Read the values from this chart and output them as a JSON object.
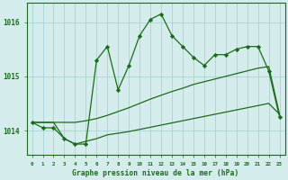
{
  "hours": [
    0,
    1,
    2,
    3,
    4,
    5,
    6,
    7,
    8,
    9,
    10,
    11,
    12,
    13,
    14,
    15,
    16,
    17,
    18,
    19,
    20,
    21,
    22,
    23
  ],
  "pressure_main": [
    1014.15,
    1014.05,
    1014.05,
    1013.85,
    1013.75,
    1013.75,
    1015.3,
    1015.55,
    1014.75,
    1015.2,
    1015.75,
    1016.05,
    1016.15,
    1015.75,
    1015.55,
    1015.35,
    1015.2,
    1015.4,
    1015.4,
    1015.5,
    1015.55,
    1015.55,
    1015.1,
    1014.25
  ],
  "pressure_trend1": [
    1014.15,
    1014.15,
    1014.15,
    1014.15,
    1014.15,
    1014.18,
    1014.22,
    1014.28,
    1014.35,
    1014.42,
    1014.5,
    1014.58,
    1014.65,
    1014.72,
    1014.78,
    1014.85,
    1014.9,
    1014.95,
    1015.0,
    1015.05,
    1015.1,
    1015.15,
    1015.18,
    1014.3
  ],
  "pressure_trend2": [
    1014.15,
    1014.15,
    1014.15,
    1013.85,
    1013.75,
    1013.8,
    1013.85,
    1013.92,
    1013.95,
    1013.98,
    1014.02,
    1014.06,
    1014.1,
    1014.14,
    1014.18,
    1014.22,
    1014.26,
    1014.3,
    1014.34,
    1014.38,
    1014.42,
    1014.46,
    1014.5,
    1014.3
  ],
  "ylim": [
    1013.55,
    1016.35
  ],
  "yticks": [
    1014,
    1015,
    1016
  ],
  "xtick_labels": [
    "0",
    "1",
    "2",
    "3",
    "4",
    "5",
    "6",
    "7",
    "8",
    "9",
    "10",
    "11",
    "12",
    "13",
    "14",
    "15",
    "16",
    "17",
    "18",
    "19",
    "20",
    "21",
    "22",
    "23"
  ],
  "xlabel": "Graphe pression niveau de la mer (hPa)",
  "line_color": "#1a6b1a",
  "bg_color": "#d4ecec",
  "grid_color": "#9ecece",
  "marker": "D",
  "marker_size": 2.2,
  "linewidth": 0.9
}
